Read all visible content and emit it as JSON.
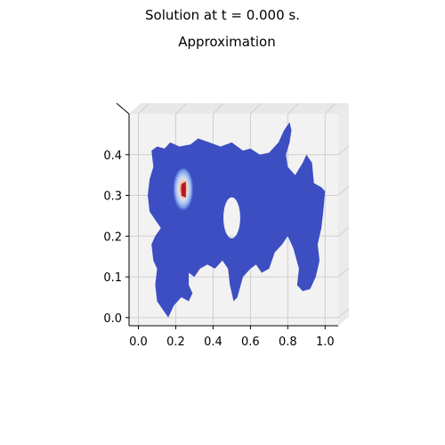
{
  "figure": {
    "suptitle": "Solution at t = 0.000 s.",
    "subtitle": "Approximation"
  },
  "chart_data": {
    "type": "surface",
    "title": "Approximation",
    "xlabel": "",
    "ylabel": "",
    "x_ticks": [
      "0.0",
      "0.2",
      "0.4",
      "0.6",
      "0.8",
      "1.0"
    ],
    "y_ticks": [
      "0.0",
      "0.1",
      "0.2",
      "0.3",
      "0.4"
    ],
    "x_tick_values": [
      0.0,
      0.2,
      0.4,
      0.6,
      0.8,
      1.0
    ],
    "y_tick_values": [
      0.0,
      0.1,
      0.2,
      0.3,
      0.4
    ],
    "xlim": [
      -0.05,
      1.07
    ],
    "ylim": [
      -0.02,
      0.5
    ],
    "view": "top-down 3D surface",
    "colormap": "coolwarm",
    "base_color": "#3c4ec2",
    "peak": {
      "x": 0.24,
      "y": 0.31
    },
    "hole": {
      "x": 0.5,
      "y": 0.245,
      "rx": 0.045,
      "ry": 0.05
    },
    "domain_outline": [
      [
        0.07,
        0.41
      ],
      [
        0.1,
        0.42
      ],
      [
        0.14,
        0.415
      ],
      [
        0.17,
        0.43
      ],
      [
        0.22,
        0.42
      ],
      [
        0.28,
        0.425
      ],
      [
        0.32,
        0.44
      ],
      [
        0.38,
        0.43
      ],
      [
        0.44,
        0.42
      ],
      [
        0.5,
        0.43
      ],
      [
        0.56,
        0.41
      ],
      [
        0.6,
        0.415
      ],
      [
        0.65,
        0.4
      ],
      [
        0.7,
        0.405
      ],
      [
        0.75,
        0.43
      ],
      [
        0.78,
        0.46
      ],
      [
        0.81,
        0.48
      ],
      [
        0.82,
        0.46
      ],
      [
        0.81,
        0.43
      ],
      [
        0.79,
        0.4
      ],
      [
        0.8,
        0.37
      ],
      [
        0.84,
        0.35
      ],
      [
        0.88,
        0.38
      ],
      [
        0.9,
        0.4
      ],
      [
        0.93,
        0.38
      ],
      [
        0.94,
        0.33
      ],
      [
        0.98,
        0.32
      ],
      [
        1.0,
        0.31
      ],
      [
        0.99,
        0.26
      ],
      [
        0.98,
        0.22
      ],
      [
        0.96,
        0.18
      ],
      [
        0.97,
        0.14
      ],
      [
        0.95,
        0.1
      ],
      [
        0.92,
        0.07
      ],
      [
        0.88,
        0.065
      ],
      [
        0.85,
        0.08
      ],
      [
        0.86,
        0.12
      ],
      [
        0.83,
        0.17
      ],
      [
        0.8,
        0.2
      ],
      [
        0.77,
        0.18
      ],
      [
        0.73,
        0.16
      ],
      [
        0.7,
        0.12
      ],
      [
        0.66,
        0.11
      ],
      [
        0.63,
        0.13
      ],
      [
        0.6,
        0.12
      ],
      [
        0.56,
        0.1
      ],
      [
        0.53,
        0.05
      ],
      [
        0.51,
        0.04
      ],
      [
        0.49,
        0.08
      ],
      [
        0.48,
        0.12
      ],
      [
        0.45,
        0.14
      ],
      [
        0.41,
        0.12
      ],
      [
        0.37,
        0.13
      ],
      [
        0.33,
        0.12
      ],
      [
        0.3,
        0.1
      ],
      [
        0.27,
        0.11
      ],
      [
        0.27,
        0.08
      ],
      [
        0.29,
        0.06
      ],
      [
        0.27,
        0.04
      ],
      [
        0.23,
        0.05
      ],
      [
        0.19,
        0.03
      ],
      [
        0.16,
        0.0
      ],
      [
        0.13,
        0.02
      ],
      [
        0.1,
        0.04
      ],
      [
        0.09,
        0.08
      ],
      [
        0.1,
        0.12
      ],
      [
        0.08,
        0.14
      ],
      [
        0.07,
        0.18
      ],
      [
        0.09,
        0.2
      ],
      [
        0.12,
        0.22
      ],
      [
        0.09,
        0.24
      ],
      [
        0.06,
        0.26
      ],
      [
        0.05,
        0.3
      ],
      [
        0.06,
        0.34
      ],
      [
        0.08,
        0.37
      ]
    ],
    "grid": true,
    "legend": "none"
  }
}
